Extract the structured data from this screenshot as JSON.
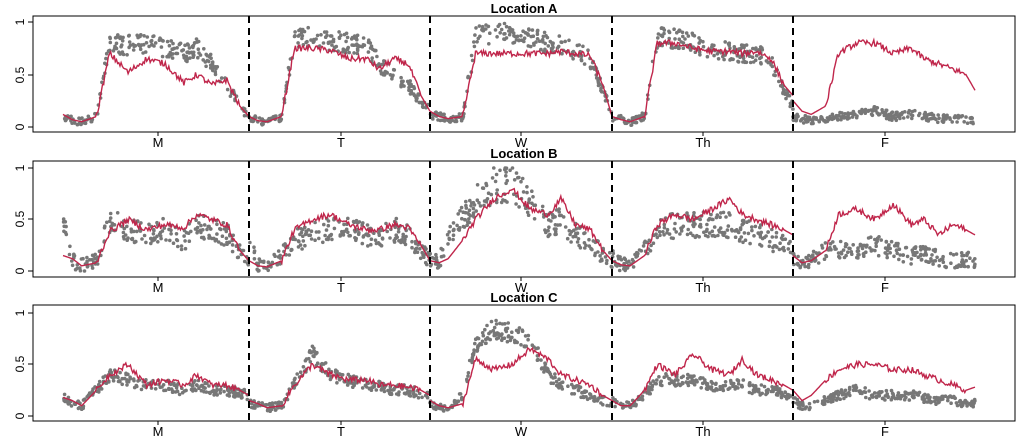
{
  "chart_data": [
    {
      "type": "scatter",
      "title": "Location A",
      "categories": [
        "M",
        "T",
        "W",
        "Th",
        "F"
      ],
      "y_ticks": [
        "0",
        "0.5",
        "1"
      ],
      "ylim": [
        0,
        1
      ],
      "grid": false,
      "colors": {
        "points": "#777777",
        "line": "#c0264b"
      },
      "line_profile": {
        "x": [
          0.0,
          0.05,
          0.1,
          0.18,
          0.25,
          0.35,
          0.45,
          0.55,
          0.65,
          0.72,
          0.8,
          0.88,
          0.95,
          1.0
        ],
        "M": [
          0.12,
          0.07,
          0.05,
          0.1,
          0.7,
          0.52,
          0.65,
          0.6,
          0.42,
          0.5,
          0.4,
          0.45,
          0.2,
          0.1
        ],
        "T": [
          0.1,
          0.06,
          0.05,
          0.1,
          0.75,
          0.75,
          0.73,
          0.65,
          0.65,
          0.55,
          0.65,
          0.6,
          0.3,
          0.15
        ],
        "W": [
          0.15,
          0.1,
          0.08,
          0.1,
          0.7,
          0.7,
          0.7,
          0.7,
          0.7,
          0.72,
          0.7,
          0.68,
          0.4,
          0.1
        ],
        "Th": [
          0.1,
          0.07,
          0.05,
          0.1,
          0.8,
          0.8,
          0.75,
          0.72,
          0.72,
          0.7,
          0.72,
          0.65,
          0.4,
          0.3
        ],
        "F": [
          0.25,
          0.15,
          0.12,
          0.2,
          0.7,
          0.8,
          0.8,
          0.7,
          0.75,
          0.65,
          0.6,
          0.55,
          0.5,
          0.35
        ]
      },
      "scatter_profile": {
        "M": [
          0.1,
          0.06,
          0.05,
          0.1,
          0.8,
          0.78,
          0.8,
          0.75,
          0.7,
          0.75,
          0.6,
          0.4,
          0.2,
          0.1
        ],
        "T": [
          0.1,
          0.06,
          0.05,
          0.1,
          0.85,
          0.85,
          0.82,
          0.8,
          0.78,
          0.6,
          0.5,
          0.4,
          0.25,
          0.15
        ],
        "W": [
          0.12,
          0.1,
          0.08,
          0.1,
          0.85,
          0.9,
          0.9,
          0.85,
          0.8,
          0.78,
          0.72,
          0.65,
          0.35,
          0.1
        ],
        "Th": [
          0.1,
          0.07,
          0.05,
          0.1,
          0.85,
          0.85,
          0.8,
          0.75,
          0.72,
          0.7,
          0.7,
          0.62,
          0.35,
          0.2
        ],
        "F": [
          0.1,
          0.08,
          0.06,
          0.08,
          0.1,
          0.12,
          0.15,
          0.1,
          0.12,
          0.1,
          0.08,
          0.08,
          0.07,
          0.06
        ]
      },
      "scatter_spread": 0.08
    },
    {
      "type": "scatter",
      "title": "Location B",
      "categories": [
        "M",
        "T",
        "W",
        "Th",
        "F"
      ],
      "y_ticks": [
        "0",
        "0.5",
        "1"
      ],
      "ylim": [
        0,
        1
      ],
      "grid": false,
      "colors": {
        "points": "#777777",
        "line": "#c0264b"
      },
      "line_profile": {
        "x": [
          0.0,
          0.05,
          0.1,
          0.18,
          0.25,
          0.35,
          0.45,
          0.55,
          0.65,
          0.72,
          0.8,
          0.88,
          0.95,
          1.0
        ],
        "M": [
          0.15,
          0.12,
          0.05,
          0.08,
          0.38,
          0.5,
          0.4,
          0.45,
          0.42,
          0.55,
          0.5,
          0.45,
          0.2,
          0.1
        ],
        "T": [
          0.1,
          0.05,
          0.04,
          0.1,
          0.4,
          0.5,
          0.55,
          0.45,
          0.4,
          0.4,
          0.45,
          0.42,
          0.25,
          0.1
        ],
        "W": [
          0.1,
          0.08,
          0.12,
          0.3,
          0.5,
          0.7,
          0.8,
          0.6,
          0.55,
          0.7,
          0.45,
          0.4,
          0.2,
          0.1
        ],
        "Th": [
          0.1,
          0.06,
          0.05,
          0.15,
          0.45,
          0.55,
          0.5,
          0.6,
          0.7,
          0.55,
          0.5,
          0.45,
          0.4,
          0.35
        ],
        "F": [
          0.15,
          0.08,
          0.1,
          0.2,
          0.55,
          0.6,
          0.5,
          0.65,
          0.45,
          0.5,
          0.35,
          0.45,
          0.4,
          0.35
        ]
      },
      "scatter_profile": {
        "M": [
          0.5,
          0.1,
          0.05,
          0.1,
          0.5,
          0.4,
          0.35,
          0.4,
          0.3,
          0.45,
          0.4,
          0.35,
          0.2,
          0.1
        ],
        "T": [
          0.3,
          0.05,
          0.05,
          0.15,
          0.3,
          0.35,
          0.4,
          0.4,
          0.35,
          0.35,
          0.4,
          0.35,
          0.2,
          0.1
        ],
        "W": [
          0.1,
          0.1,
          0.3,
          0.5,
          0.7,
          0.85,
          0.85,
          0.65,
          0.45,
          0.5,
          0.35,
          0.3,
          0.15,
          0.1
        ],
        "Th": [
          0.15,
          0.06,
          0.05,
          0.2,
          0.4,
          0.45,
          0.45,
          0.45,
          0.45,
          0.4,
          0.35,
          0.3,
          0.25,
          0.2
        ],
        "F": [
          0.1,
          0.06,
          0.1,
          0.2,
          0.2,
          0.2,
          0.25,
          0.2,
          0.15,
          0.18,
          0.12,
          0.1,
          0.12,
          0.1
        ]
      },
      "scatter_spread": 0.15
    },
    {
      "type": "scatter",
      "title": "Location C",
      "categories": [
        "M",
        "T",
        "W",
        "Th",
        "F"
      ],
      "y_ticks": [
        "0",
        "0.5",
        "1"
      ],
      "ylim": [
        0,
        1
      ],
      "grid": false,
      "colors": {
        "points": "#777777",
        "line": "#c0264b"
      },
      "line_profile": {
        "x": [
          0.0,
          0.05,
          0.1,
          0.18,
          0.25,
          0.35,
          0.45,
          0.55,
          0.65,
          0.72,
          0.8,
          0.88,
          0.95,
          1.0
        ],
        "M": [
          0.18,
          0.15,
          0.1,
          0.25,
          0.4,
          0.5,
          0.3,
          0.35,
          0.3,
          0.4,
          0.3,
          0.3,
          0.25,
          0.2
        ],
        "T": [
          0.15,
          0.12,
          0.08,
          0.1,
          0.3,
          0.5,
          0.4,
          0.35,
          0.35,
          0.3,
          0.3,
          0.28,
          0.25,
          0.2
        ],
        "W": [
          0.15,
          0.1,
          0.08,
          0.12,
          0.55,
          0.45,
          0.5,
          0.65,
          0.55,
          0.4,
          0.35,
          0.3,
          0.2,
          0.15
        ],
        "Th": [
          0.15,
          0.1,
          0.1,
          0.25,
          0.5,
          0.4,
          0.6,
          0.45,
          0.4,
          0.55,
          0.4,
          0.35,
          0.3,
          0.25
        ],
        "F": [
          0.25,
          0.15,
          0.2,
          0.35,
          0.45,
          0.5,
          0.5,
          0.45,
          0.45,
          0.4,
          0.35,
          0.3,
          0.25,
          0.28
        ]
      },
      "scatter_profile": {
        "M": [
          0.18,
          0.12,
          0.1,
          0.25,
          0.4,
          0.35,
          0.3,
          0.3,
          0.25,
          0.3,
          0.25,
          0.25,
          0.22,
          0.2
        ],
        "T": [
          0.12,
          0.1,
          0.08,
          0.1,
          0.3,
          0.6,
          0.4,
          0.35,
          0.3,
          0.3,
          0.25,
          0.25,
          0.22,
          0.2
        ],
        "W": [
          0.12,
          0.08,
          0.08,
          0.2,
          0.7,
          0.85,
          0.8,
          0.75,
          0.4,
          0.3,
          0.25,
          0.2,
          0.15,
          0.12
        ],
        "Th": [
          0.15,
          0.1,
          0.1,
          0.2,
          0.35,
          0.35,
          0.35,
          0.3,
          0.3,
          0.3,
          0.25,
          0.25,
          0.22,
          0.2
        ],
        "F": [
          0.15,
          0.1,
          0.1,
          0.15,
          0.2,
          0.25,
          0.2,
          0.2,
          0.2,
          0.18,
          0.15,
          0.15,
          0.12,
          0.12
        ]
      },
      "scatter_spread": 0.08
    }
  ]
}
